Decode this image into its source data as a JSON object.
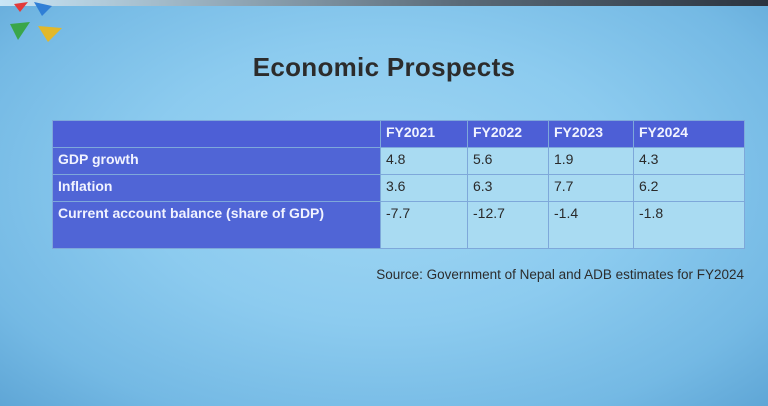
{
  "slide": {
    "title": "Economic Prospects",
    "source": "Source: Government of Nepal and ADB estimates for FY2024"
  },
  "table": {
    "columns": [
      "FY2021",
      "FY2022",
      "FY2023",
      "FY2024"
    ],
    "rows": [
      {
        "label": "GDP growth",
        "values": [
          "4.8",
          "5.6",
          "1.9",
          "4.3"
        ]
      },
      {
        "label": "Inflation",
        "values": [
          "3.6",
          "6.3",
          "7.7",
          "6.2"
        ]
      },
      {
        "label": "Current account balance (share of GDP)",
        "values": [
          "-7.7",
          "-12.7",
          "-1.4",
          "-1.8"
        ]
      }
    ]
  },
  "colors": {
    "header": "#4d5fd6",
    "value_cell": "#a9dbf2",
    "background": "#8ccbef"
  },
  "logo": {
    "icon": "colored-arrows-logo-icon"
  }
}
